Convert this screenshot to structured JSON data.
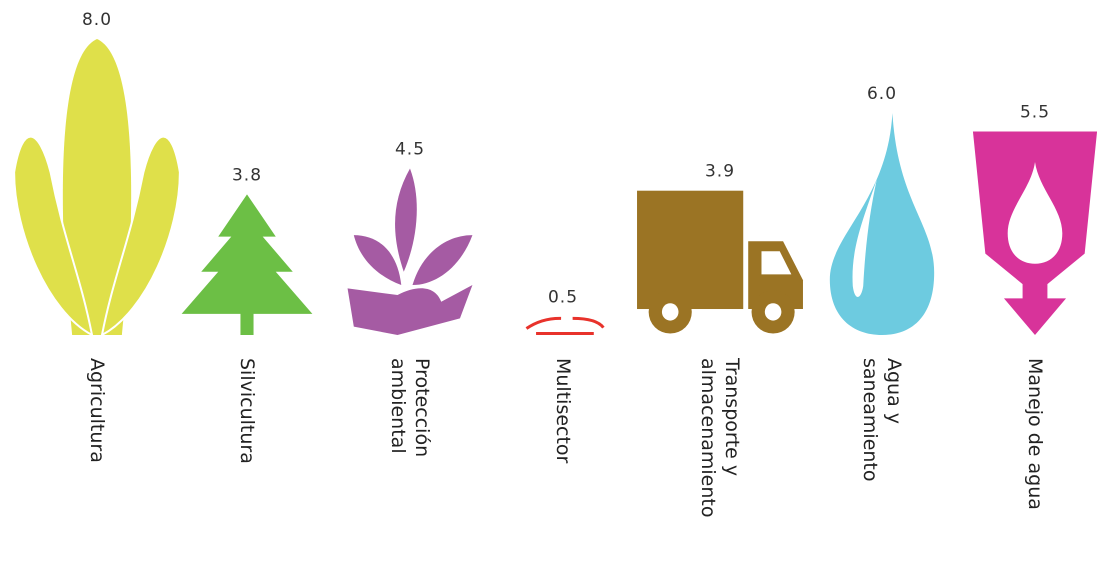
{
  "chart_data": {
    "type": "pictorial-bar",
    "categories": [
      "Agricultura",
      "Silvicultura",
      "Protección\nambiental",
      "Multisector",
      "Transporte y\nalmacenamiento",
      "Agua y\nsaneamiento",
      "Manejo de agua"
    ],
    "values": [
      8.0,
      3.8,
      4.5,
      0.5,
      3.9,
      6.0,
      5.5
    ],
    "value_labels": [
      "8.0",
      "3.8",
      "4.5",
      "0.5",
      "3.9",
      "6.0",
      "5.5"
    ],
    "colors": [
      "#dfe04a",
      "#6cbf45",
      "#a55ba3",
      "#e8322b",
      "#9b7424",
      "#6dcbe0",
      "#d8339a"
    ]
  }
}
